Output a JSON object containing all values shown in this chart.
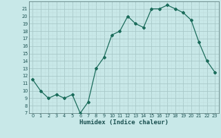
{
  "x": [
    0,
    1,
    2,
    3,
    4,
    5,
    6,
    7,
    8,
    9,
    10,
    11,
    12,
    13,
    14,
    15,
    16,
    17,
    18,
    19,
    20,
    21,
    22,
    23
  ],
  "y": [
    11.5,
    10.0,
    9.0,
    9.5,
    9.0,
    9.5,
    7.0,
    8.5,
    13.0,
    14.5,
    17.5,
    18.0,
    20.0,
    19.0,
    18.5,
    21.0,
    21.0,
    21.5,
    21.0,
    20.5,
    19.5,
    16.5,
    14.0,
    12.5
  ],
  "line_color": "#1a6b5a",
  "marker": "D",
  "marker_size": 2.0,
  "bg_color": "#c8e8e8",
  "grid_major_color": "#a8c8c8",
  "grid_minor_color": "#c0dede",
  "xlabel": "Humidex (Indice chaleur)",
  "xlim": [
    -0.5,
    23.5
  ],
  "ylim": [
    7,
    22
  ],
  "yticks": [
    7,
    8,
    9,
    10,
    11,
    12,
    13,
    14,
    15,
    16,
    17,
    18,
    19,
    20,
    21
  ],
  "xticks": [
    0,
    1,
    2,
    3,
    4,
    5,
    6,
    7,
    8,
    9,
    10,
    11,
    12,
    13,
    14,
    15,
    16,
    17,
    18,
    19,
    20,
    21,
    22,
    23
  ]
}
